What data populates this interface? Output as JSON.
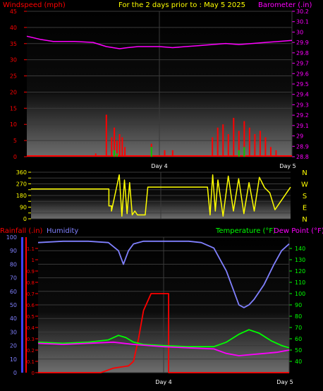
{
  "header": {
    "windspeed_label": "Windspeed (mph)",
    "period_label": "For the 2 days prior to : May 5 2025",
    "barometer_label": "Barometer (.in)"
  },
  "colors": {
    "windspeed": "#ff0000",
    "gust": "#00cc00",
    "barometer": "#ff00ff",
    "direction": "#ffff00",
    "rainfall": "#ff0000",
    "humidity": "#8080ff",
    "temperature": "#00ff00",
    "dewpoint": "#ff00ff",
    "header_center": "#ffff00",
    "axis_tick": "#ffffff"
  },
  "chart_data": [
    {
      "type": "line",
      "name": "wind-barometer",
      "title": "For the 2 days prior to : May 5 2025",
      "x_ticks": [
        "Day 4",
        "Day 5"
      ],
      "y_left": {
        "label": "Windspeed (mph)",
        "range": [
          0,
          45
        ],
        "ticks": [
          0,
          5,
          10,
          15,
          20,
          25,
          30,
          35,
          40,
          45
        ]
      },
      "y_right": {
        "label": "Barometer (.in)",
        "range": [
          28.8,
          30.2
        ],
        "ticks": [
          "28.8",
          "28.9",
          "29",
          "29.1",
          "29.2",
          "29.3",
          "29.4",
          "29.5",
          "29.6",
          "29.7",
          "29.8",
          "29.9",
          "30",
          "30.1",
          "30.2"
        ]
      },
      "series": [
        {
          "name": "Barometer",
          "axis": "right",
          "x": [
            0,
            0.05,
            0.1,
            0.18,
            0.25,
            0.3,
            0.35,
            0.38,
            0.42,
            0.47,
            0.5,
            0.55,
            0.6,
            0.65,
            0.7,
            0.75,
            0.8,
            0.85,
            0.9,
            0.95,
            1.0
          ],
          "values": [
            29.96,
            29.93,
            29.91,
            29.91,
            29.9,
            29.86,
            29.84,
            29.85,
            29.86,
            29.86,
            29.86,
            29.85,
            29.86,
            29.87,
            29.88,
            29.89,
            29.88,
            29.89,
            29.9,
            29.91,
            29.92
          ]
        },
        {
          "name": "Windspeed",
          "axis": "left",
          "x": [
            0.26,
            0.3,
            0.32,
            0.33,
            0.34,
            0.35,
            0.36,
            0.37,
            0.47,
            0.52,
            0.55,
            0.7,
            0.72,
            0.74,
            0.76,
            0.78,
            0.8,
            0.82,
            0.84,
            0.86,
            0.88,
            0.9,
            0.92,
            0.94
          ],
          "values": [
            1,
            13,
            6,
            9,
            5,
            7,
            6,
            3,
            4,
            2,
            2,
            6,
            9,
            10,
            7,
            12,
            8,
            11,
            9,
            7,
            8,
            6,
            3,
            2
          ]
        },
        {
          "name": "Gust",
          "axis": "left",
          "x": [
            0.33,
            0.34,
            0.47,
            0.8,
            0.82
          ],
          "values": [
            2,
            1,
            3,
            2,
            3
          ]
        }
      ]
    },
    {
      "type": "line",
      "name": "wind-direction",
      "x_ticks": [],
      "y_left": {
        "range": [
          0,
          360
        ],
        "ticks": [
          0,
          45,
          90,
          135,
          180,
          225,
          270,
          315,
          360
        ],
        "tick_labels": [
          "0",
          "",
          "90",
          "",
          "180",
          "",
          "270",
          "",
          "360"
        ]
      },
      "y_right": {
        "ticks": [
          "N",
          "E",
          "S",
          "W",
          "N"
        ]
      },
      "series": [
        {
          "name": "Wind Direction",
          "x": [
            0,
            0.3,
            0.3,
            0.31,
            0.31,
            0.34,
            0.35,
            0.36,
            0.37,
            0.38,
            0.39,
            0.4,
            0.41,
            0.44,
            0.45,
            0.68,
            0.69,
            0.7,
            0.71,
            0.72,
            0.74,
            0.76,
            0.78,
            0.8,
            0.82,
            0.84,
            0.86,
            0.88,
            0.9,
            0.92,
            0.94,
            1.0
          ],
          "values": [
            230,
            230,
            100,
            100,
            60,
            340,
            20,
            300,
            40,
            280,
            30,
            60,
            30,
            30,
            245,
            245,
            30,
            340,
            60,
            300,
            20,
            330,
            60,
            310,
            40,
            280,
            60,
            320,
            240,
            200,
            70,
            245
          ]
        }
      ]
    },
    {
      "type": "line",
      "name": "rain-humidity-temp",
      "x_ticks": [
        "Day 4",
        "Day 5"
      ],
      "y_left_outer": {
        "label": "Humidity",
        "range": [
          0,
          100
        ],
        "ticks": [
          0,
          10,
          20,
          30,
          40,
          50,
          60,
          70,
          80,
          90,
          100
        ]
      },
      "y_left_inner": {
        "label": "Rainfall (.in)",
        "range": [
          0,
          1.2
        ],
        "ticks": [
          "0",
          "0.1",
          "0.2",
          "0.3",
          "0.4",
          "0.5",
          "0.6",
          "0.7",
          "0.8",
          "0.9",
          "1",
          "1.1"
        ]
      },
      "y_right": {
        "label": "Temperature (°F)",
        "label2": "Dew Point (°F)",
        "range": [
          30,
          150
        ],
        "ticks": [
          40,
          50,
          60,
          70,
          80,
          90,
          100,
          110,
          120,
          130,
          140
        ]
      },
      "series": [
        {
          "name": "Humidity",
          "axis": "left_outer",
          "x": [
            0,
            0.1,
            0.2,
            0.28,
            0.32,
            0.34,
            0.36,
            0.38,
            0.42,
            0.5,
            0.6,
            0.65,
            0.7,
            0.75,
            0.78,
            0.8,
            0.82,
            0.84,
            0.86,
            0.9,
            0.94,
            0.97,
            1.0
          ],
          "values": [
            96,
            97,
            97,
            96,
            90,
            80,
            90,
            95,
            97,
            97,
            97,
            96,
            92,
            75,
            60,
            50,
            48,
            50,
            54,
            65,
            80,
            90,
            95
          ]
        },
        {
          "name": "Rainfall",
          "axis": "left_inner",
          "x": [
            0,
            0.25,
            0.3,
            0.36,
            0.38,
            0.4,
            0.42,
            0.45,
            0.52,
            0.52,
            1.0
          ],
          "values": [
            0,
            0,
            0.04,
            0.06,
            0.1,
            0.3,
            0.55,
            0.7,
            0.7,
            0,
            0
          ]
        },
        {
          "name": "Temperature",
          "axis": "right",
          "x": [
            0,
            0.1,
            0.2,
            0.28,
            0.32,
            0.35,
            0.38,
            0.42,
            0.5,
            0.6,
            0.7,
            0.75,
            0.8,
            0.84,
            0.88,
            0.93,
            0.97,
            1.0
          ],
          "values": [
            57,
            56,
            57,
            59,
            63,
            61,
            57,
            55,
            54,
            53,
            53,
            57,
            64,
            68,
            65,
            58,
            54,
            52
          ]
        },
        {
          "name": "Dew Point",
          "axis": "right",
          "x": [
            0,
            0.1,
            0.2,
            0.3,
            0.38,
            0.5,
            0.6,
            0.7,
            0.75,
            0.8,
            0.85,
            0.9,
            0.95,
            1.0
          ],
          "values": [
            56,
            55,
            56,
            57,
            55,
            53,
            52,
            51,
            47,
            45,
            46,
            47,
            48,
            50
          ]
        }
      ]
    }
  ]
}
